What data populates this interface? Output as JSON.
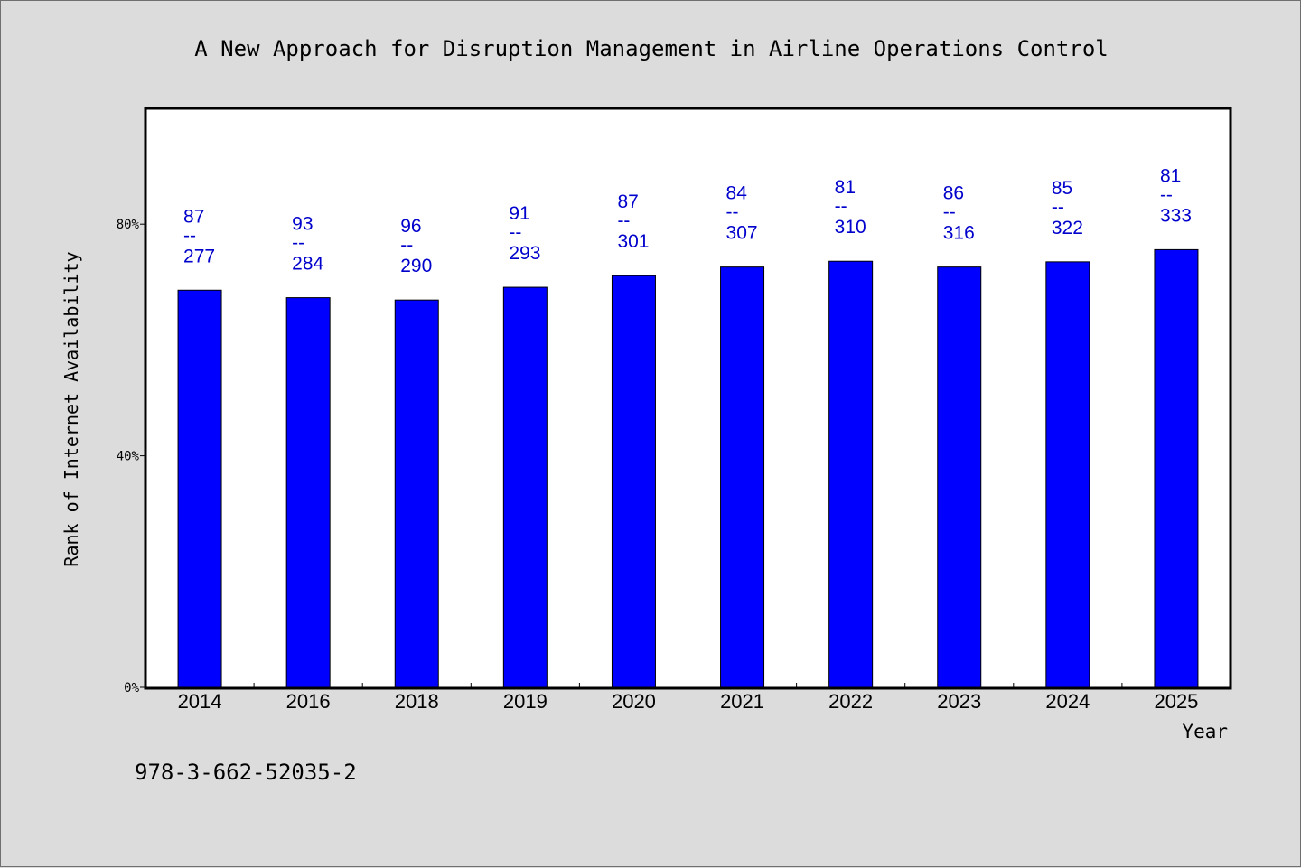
{
  "chart_data": {
    "type": "bar",
    "title": "A New Approach for Disruption Management in Airline Operations Control",
    "xlabel": "Year",
    "ylabel": "Rank of Internet Availability",
    "categories": [
      "2014",
      "2016",
      "2018",
      "2019",
      "2020",
      "2021",
      "2022",
      "2023",
      "2024",
      "2025"
    ],
    "series": [
      {
        "values": [
          68.6,
          67.3,
          66.9,
          69.1,
          71.1,
          72.6,
          73.6,
          72.6,
          73.5,
          75.6
        ],
        "data_labels": [
          "87\n--\n277",
          "93\n--\n284",
          "96\n--\n290",
          "91\n--\n293",
          "87\n--\n301",
          "84\n--\n307",
          "81\n--\n310",
          "86\n--\n316",
          "85\n--\n322",
          "81\n--\n333"
        ]
      }
    ],
    "ylim": [
      0,
      100
    ],
    "yticks": [
      0,
      40,
      80
    ],
    "ytick_labels": [
      "0%",
      "40%",
      "80%"
    ],
    "grid": false,
    "colors": {
      "bar": "#0000ff",
      "label": "#0000cc",
      "background": "#dcdcdc",
      "plot": "#ffffff"
    }
  },
  "footer": {
    "isbn": "978-3-662-52035-2"
  }
}
